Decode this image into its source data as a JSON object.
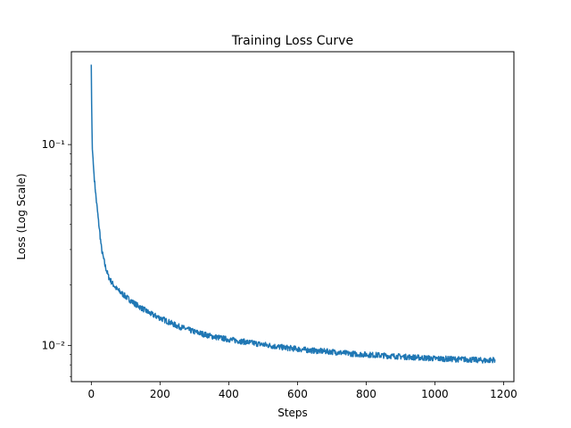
{
  "chart_data": {
    "type": "line",
    "title": "Training Loss Curve",
    "xlabel": "Steps",
    "ylabel": "Loss (Log Scale)",
    "xlim": [
      -58,
      1230
    ],
    "ylim": [
      0.0066,
      0.29
    ],
    "yscale": "log",
    "grid": false,
    "line_color": "#1f77b4",
    "x_ticks": [
      0,
      200,
      400,
      600,
      800,
      1000,
      1200
    ],
    "x_tick_labels": [
      "0",
      "200",
      "400",
      "600",
      "800",
      "1000",
      "1200"
    ],
    "y_major_ticks": [
      0.01,
      0.1
    ],
    "y_major_tick_labels": [
      "10⁻²",
      "10⁻¹"
    ],
    "series": [
      {
        "x": [
          0,
          1,
          2,
          3,
          5,
          7,
          10,
          15,
          20,
          25,
          30,
          40,
          50,
          60,
          75,
          100,
          125,
          150,
          175,
          200,
          250,
          300,
          350,
          400,
          450,
          500,
          550,
          600,
          650,
          700,
          750,
          800,
          850,
          900,
          950,
          1000,
          1050,
          1100,
          1150,
          1175
        ],
        "y": [
          0.25,
          0.16,
          0.12,
          0.095,
          0.085,
          0.075,
          0.064,
          0.052,
          0.043,
          0.036,
          0.03,
          0.025,
          0.022,
          0.0205,
          0.019,
          0.0175,
          0.0162,
          0.0152,
          0.0143,
          0.0137,
          0.0125,
          0.0117,
          0.0111,
          0.0107,
          0.0104,
          0.0101,
          0.0098,
          0.0096,
          0.0094,
          0.0093,
          0.0091,
          0.009,
          0.0089,
          0.0088,
          0.0087,
          0.0086,
          0.00855,
          0.0085,
          0.0084,
          0.0085
        ]
      }
    ]
  }
}
